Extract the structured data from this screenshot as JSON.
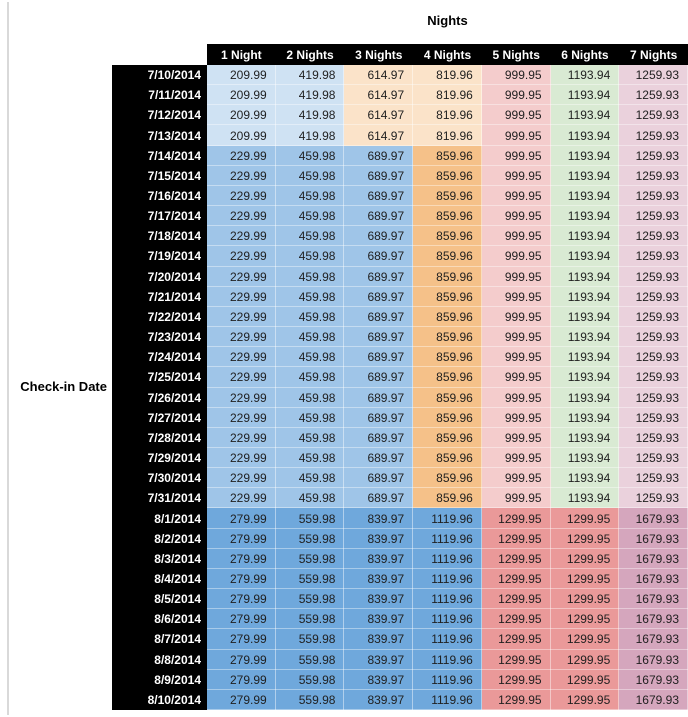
{
  "title": "Nights",
  "row_axis_label": "Check-in Date",
  "colors": {
    "page_bg": "#ffffff",
    "left_rule": "#d9d9d9",
    "header_bg": "#000000",
    "header_text": "#ffffff",
    "price_text": "#1f1f1f",
    "tiers": {
      "jul_early": [
        "#cfe2f3",
        "#cfe2f3",
        "#fbe3c9",
        "#fbe3c9",
        "#f4cccc",
        "#d9ead3",
        "#ead1dc"
      ],
      "jul_peak": [
        "#9fc5e8",
        "#9fc5e8",
        "#9fc5e8",
        "#f5c189",
        "#f4cccc",
        "#d9ead3",
        "#ead1dc"
      ],
      "aug": [
        "#6fa8dc",
        "#6fa8dc",
        "#6fa8dc",
        "#6fa8dc",
        "#ea9999",
        "#ea9999",
        "#d5a6bd"
      ]
    }
  },
  "chart_data": {
    "type": "table",
    "title": "Nights",
    "row_label": "Check-in Date",
    "columns": [
      "1 Night",
      "2 Nights",
      "3 Nights",
      "4 Nights",
      "5 Nights",
      "6 Nights",
      "7 Nights"
    ],
    "rows": [
      {
        "date": "7/10/2014",
        "tier": "jul_early",
        "values": [
          "209.99",
          "419.98",
          "614.97",
          "819.96",
          "999.95",
          "1193.94",
          "1259.93"
        ]
      },
      {
        "date": "7/11/2014",
        "tier": "jul_early",
        "values": [
          "209.99",
          "419.98",
          "614.97",
          "819.96",
          "999.95",
          "1193.94",
          "1259.93"
        ]
      },
      {
        "date": "7/12/2014",
        "tier": "jul_early",
        "values": [
          "209.99",
          "419.98",
          "614.97",
          "819.96",
          "999.95",
          "1193.94",
          "1259.93"
        ]
      },
      {
        "date": "7/13/2014",
        "tier": "jul_early",
        "values": [
          "209.99",
          "419.98",
          "614.97",
          "819.96",
          "999.95",
          "1193.94",
          "1259.93"
        ]
      },
      {
        "date": "7/14/2014",
        "tier": "jul_peak",
        "values": [
          "229.99",
          "459.98",
          "689.97",
          "859.96",
          "999.95",
          "1193.94",
          "1259.93"
        ]
      },
      {
        "date": "7/15/2014",
        "tier": "jul_peak",
        "values": [
          "229.99",
          "459.98",
          "689.97",
          "859.96",
          "999.95",
          "1193.94",
          "1259.93"
        ]
      },
      {
        "date": "7/16/2014",
        "tier": "jul_peak",
        "values": [
          "229.99",
          "459.98",
          "689.97",
          "859.96",
          "999.95",
          "1193.94",
          "1259.93"
        ]
      },
      {
        "date": "7/17/2014",
        "tier": "jul_peak",
        "values": [
          "229.99",
          "459.98",
          "689.97",
          "859.96",
          "999.95",
          "1193.94",
          "1259.93"
        ]
      },
      {
        "date": "7/18/2014",
        "tier": "jul_peak",
        "values": [
          "229.99",
          "459.98",
          "689.97",
          "859.96",
          "999.95",
          "1193.94",
          "1259.93"
        ]
      },
      {
        "date": "7/19/2014",
        "tier": "jul_peak",
        "values": [
          "229.99",
          "459.98",
          "689.97",
          "859.96",
          "999.95",
          "1193.94",
          "1259.93"
        ]
      },
      {
        "date": "7/20/2014",
        "tier": "jul_peak",
        "values": [
          "229.99",
          "459.98",
          "689.97",
          "859.96",
          "999.95",
          "1193.94",
          "1259.93"
        ]
      },
      {
        "date": "7/21/2014",
        "tier": "jul_peak",
        "values": [
          "229.99",
          "459.98",
          "689.97",
          "859.96",
          "999.95",
          "1193.94",
          "1259.93"
        ]
      },
      {
        "date": "7/22/2014",
        "tier": "jul_peak",
        "values": [
          "229.99",
          "459.98",
          "689.97",
          "859.96",
          "999.95",
          "1193.94",
          "1259.93"
        ]
      },
      {
        "date": "7/23/2014",
        "tier": "jul_peak",
        "values": [
          "229.99",
          "459.98",
          "689.97",
          "859.96",
          "999.95",
          "1193.94",
          "1259.93"
        ]
      },
      {
        "date": "7/24/2014",
        "tier": "jul_peak",
        "values": [
          "229.99",
          "459.98",
          "689.97",
          "859.96",
          "999.95",
          "1193.94",
          "1259.93"
        ]
      },
      {
        "date": "7/25/2014",
        "tier": "jul_peak",
        "values": [
          "229.99",
          "459.98",
          "689.97",
          "859.96",
          "999.95",
          "1193.94",
          "1259.93"
        ]
      },
      {
        "date": "7/26/2014",
        "tier": "jul_peak",
        "values": [
          "229.99",
          "459.98",
          "689.97",
          "859.96",
          "999.95",
          "1193.94",
          "1259.93"
        ]
      },
      {
        "date": "7/27/2014",
        "tier": "jul_peak",
        "values": [
          "229.99",
          "459.98",
          "689.97",
          "859.96",
          "999.95",
          "1193.94",
          "1259.93"
        ]
      },
      {
        "date": "7/28/2014",
        "tier": "jul_peak",
        "values": [
          "229.99",
          "459.98",
          "689.97",
          "859.96",
          "999.95",
          "1193.94",
          "1259.93"
        ]
      },
      {
        "date": "7/29/2014",
        "tier": "jul_peak",
        "values": [
          "229.99",
          "459.98",
          "689.97",
          "859.96",
          "999.95",
          "1193.94",
          "1259.93"
        ]
      },
      {
        "date": "7/30/2014",
        "tier": "jul_peak",
        "values": [
          "229.99",
          "459.98",
          "689.97",
          "859.96",
          "999.95",
          "1193.94",
          "1259.93"
        ]
      },
      {
        "date": "7/31/2014",
        "tier": "jul_peak",
        "values": [
          "229.99",
          "459.98",
          "689.97",
          "859.96",
          "999.95",
          "1193.94",
          "1259.93"
        ]
      },
      {
        "date": "8/1/2014",
        "tier": "aug",
        "values": [
          "279.99",
          "559.98",
          "839.97",
          "1119.96",
          "1299.95",
          "1299.95",
          "1679.93"
        ]
      },
      {
        "date": "8/2/2014",
        "tier": "aug",
        "values": [
          "279.99",
          "559.98",
          "839.97",
          "1119.96",
          "1299.95",
          "1299.95",
          "1679.93"
        ]
      },
      {
        "date": "8/3/2014",
        "tier": "aug",
        "values": [
          "279.99",
          "559.98",
          "839.97",
          "1119.96",
          "1299.95",
          "1299.95",
          "1679.93"
        ]
      },
      {
        "date": "8/4/2014",
        "tier": "aug",
        "values": [
          "279.99",
          "559.98",
          "839.97",
          "1119.96",
          "1299.95",
          "1299.95",
          "1679.93"
        ]
      },
      {
        "date": "8/5/2014",
        "tier": "aug",
        "values": [
          "279.99",
          "559.98",
          "839.97",
          "1119.96",
          "1299.95",
          "1299.95",
          "1679.93"
        ]
      },
      {
        "date": "8/6/2014",
        "tier": "aug",
        "values": [
          "279.99",
          "559.98",
          "839.97",
          "1119.96",
          "1299.95",
          "1299.95",
          "1679.93"
        ]
      },
      {
        "date": "8/7/2014",
        "tier": "aug",
        "values": [
          "279.99",
          "559.98",
          "839.97",
          "1119.96",
          "1299.95",
          "1299.95",
          "1679.93"
        ]
      },
      {
        "date": "8/8/2014",
        "tier": "aug",
        "values": [
          "279.99",
          "559.98",
          "839.97",
          "1119.96",
          "1299.95",
          "1299.95",
          "1679.93"
        ]
      },
      {
        "date": "8/9/2014",
        "tier": "aug",
        "values": [
          "279.99",
          "559.98",
          "839.97",
          "1119.96",
          "1299.95",
          "1299.95",
          "1679.93"
        ]
      },
      {
        "date": "8/10/2014",
        "tier": "aug",
        "values": [
          "279.99",
          "559.98",
          "839.97",
          "1119.96",
          "1299.95",
          "1299.95",
          "1679.93"
        ]
      }
    ]
  }
}
